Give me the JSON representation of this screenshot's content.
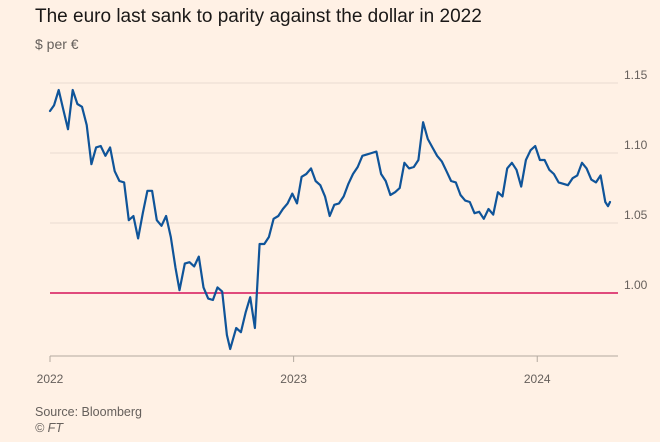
{
  "header": {
    "title": "The euro last sank to parity against the dollar in 2022",
    "unit": "$ per €"
  },
  "footer": {
    "source": "Source: Bloomberg",
    "credit": "© FT"
  },
  "colors": {
    "background": "#fff1e5",
    "series": "#0f5499",
    "parity_line": "#e04a7c",
    "grid": "#e8dcd1",
    "baseline": "#b3a99f"
  },
  "chart_data": {
    "type": "line",
    "title": "The euro last sank to parity against the dollar in 2022",
    "ylabel": "$ per €",
    "xlabel": "",
    "ylim": [
      0.955,
      1.165
    ],
    "xlim": [
      "2022-01-01",
      "2024-05-01"
    ],
    "y_ticks": [
      1.0,
      1.05,
      1.1,
      1.15
    ],
    "y_tick_labels": [
      "1.00",
      "1.05",
      "1.10",
      "1.15"
    ],
    "x_ticks": [
      "2022-01-01",
      "2023-01-01",
      "2024-01-01"
    ],
    "x_tick_labels": [
      "2022",
      "2023",
      "2024"
    ],
    "grid": true,
    "reference_line": {
      "y": 1.0
    },
    "series": [
      {
        "x": [
          "2022-01-01",
          "2022-01-07",
          "2022-01-14",
          "2022-01-21",
          "2022-01-28",
          "2022-02-04",
          "2022-02-11",
          "2022-02-18",
          "2022-02-25",
          "2022-03-04",
          "2022-03-11",
          "2022-03-18",
          "2022-03-25",
          "2022-04-01",
          "2022-04-08",
          "2022-04-15",
          "2022-04-22",
          "2022-04-29",
          "2022-05-06",
          "2022-05-13",
          "2022-05-20",
          "2022-05-27",
          "2022-06-03",
          "2022-06-10",
          "2022-06-17",
          "2022-06-24",
          "2022-07-01",
          "2022-07-08",
          "2022-07-14",
          "2022-07-22",
          "2022-07-29",
          "2022-08-05",
          "2022-08-12",
          "2022-08-19",
          "2022-08-26",
          "2022-09-02",
          "2022-09-09",
          "2022-09-16",
          "2022-09-23",
          "2022-09-28",
          "2022-10-07",
          "2022-10-14",
          "2022-10-21",
          "2022-10-28",
          "2022-11-04",
          "2022-11-11",
          "2022-11-18",
          "2022-11-25",
          "2022-12-02",
          "2022-12-09",
          "2022-12-16",
          "2022-12-23",
          "2022-12-30",
          "2023-01-06",
          "2023-01-13",
          "2023-01-20",
          "2023-01-27",
          "2023-02-03",
          "2023-02-10",
          "2023-02-17",
          "2023-02-24",
          "2023-03-03",
          "2023-03-10",
          "2023-03-17",
          "2023-03-24",
          "2023-03-31",
          "2023-04-07",
          "2023-04-14",
          "2023-04-21",
          "2023-04-28",
          "2023-05-05",
          "2023-05-12",
          "2023-05-19",
          "2023-05-26",
          "2023-06-02",
          "2023-06-09",
          "2023-06-16",
          "2023-06-23",
          "2023-06-30",
          "2023-07-07",
          "2023-07-14",
          "2023-07-21",
          "2023-07-28",
          "2023-08-04",
          "2023-08-11",
          "2023-08-18",
          "2023-08-25",
          "2023-09-01",
          "2023-09-08",
          "2023-09-15",
          "2023-09-22",
          "2023-09-29",
          "2023-10-06",
          "2023-10-13",
          "2023-10-20",
          "2023-10-27",
          "2023-11-03",
          "2023-11-10",
          "2023-11-17",
          "2023-11-24",
          "2023-12-01",
          "2023-12-08",
          "2023-12-15",
          "2023-12-22",
          "2023-12-29",
          "2024-01-05",
          "2024-01-12",
          "2024-01-19",
          "2024-01-26",
          "2024-02-02",
          "2024-02-09",
          "2024-02-16",
          "2024-02-23",
          "2024-03-01",
          "2024-03-08",
          "2024-03-15",
          "2024-03-22",
          "2024-03-29",
          "2024-04-05",
          "2024-04-12",
          "2024-04-16",
          "2024-04-19"
        ],
        "y": [
          1.13,
          1.134,
          1.145,
          1.131,
          1.117,
          1.145,
          1.135,
          1.133,
          1.12,
          1.092,
          1.104,
          1.105,
          1.098,
          1.104,
          1.087,
          1.08,
          1.079,
          1.052,
          1.055,
          1.039,
          1.057,
          1.073,
          1.073,
          1.052,
          1.048,
          1.055,
          1.04,
          1.018,
          1.002,
          1.021,
          1.022,
          1.019,
          1.026,
          1.004,
          0.996,
          0.995,
          1.004,
          1.001,
          0.97,
          0.96,
          0.975,
          0.972,
          0.986,
          0.997,
          0.975,
          1.035,
          1.035,
          1.04,
          1.053,
          1.055,
          1.06,
          1.064,
          1.071,
          1.064,
          1.083,
          1.085,
          1.089,
          1.08,
          1.077,
          1.069,
          1.055,
          1.063,
          1.064,
          1.069,
          1.078,
          1.085,
          1.09,
          1.098,
          1.099,
          1.1,
          1.101,
          1.085,
          1.08,
          1.07,
          1.072,
          1.075,
          1.093,
          1.089,
          1.09,
          1.095,
          1.122,
          1.11,
          1.104,
          1.098,
          1.094,
          1.087,
          1.08,
          1.079,
          1.07,
          1.066,
          1.065,
          1.057,
          1.058,
          1.053,
          1.06,
          1.056,
          1.072,
          1.069,
          1.089,
          1.093,
          1.088,
          1.076,
          1.095,
          1.102,
          1.105,
          1.095,
          1.095,
          1.088,
          1.085,
          1.079,
          1.078,
          1.077,
          1.082,
          1.084,
          1.093,
          1.089,
          1.081,
          1.079,
          1.084,
          1.065,
          1.062,
          1.065
        ]
      }
    ]
  }
}
